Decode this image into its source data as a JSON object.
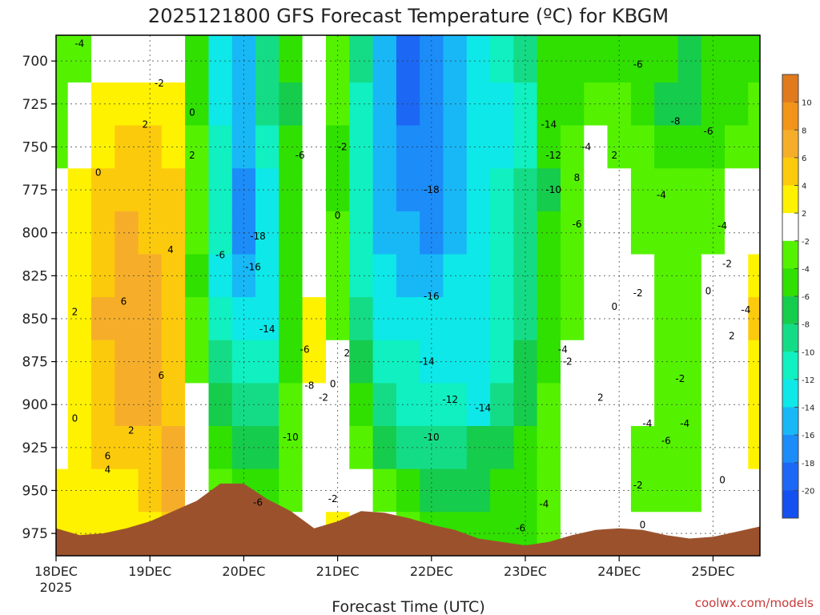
{
  "chart_data": {
    "type": "heatmap",
    "title": "2025121800 GFS Forecast Temperature (ºC) for KBGM",
    "xlabel": "Forecast Time (UTC)",
    "ylabel": "",
    "x_ticks": [
      "18DEC",
      "19DEC",
      "20DEC",
      "21DEC",
      "22DEC",
      "23DEC",
      "24DEC",
      "25DEC"
    ],
    "x_year": "2025",
    "y_ticks": [
      "700",
      "725",
      "750",
      "775",
      "800",
      "825",
      "850",
      "875",
      "900",
      "925",
      "950",
      "975"
    ],
    "ylim": [
      988,
      685
    ],
    "xlim_days": [
      0,
      7.5
    ],
    "grid": true,
    "colorbar": {
      "labels": [
        "10",
        "8",
        "6",
        "4",
        "2",
        "-2",
        "-4",
        "-6",
        "-8",
        "-10",
        "-12",
        "-14",
        "-16",
        "-18",
        "-20"
      ],
      "colors": [
        "#e07a1c",
        "#f19418",
        "#f6ae2a",
        "#fcca0c",
        "#fff200",
        "#ffffff",
        "#54f200",
        "#30e000",
        "#16cc4c",
        "#14dc86",
        "#10f0c0",
        "#0ee8e8",
        "#18b8f6",
        "#1c8cf8",
        "#1c68f4",
        "#1450f0"
      ]
    },
    "columns_x": [
      0,
      0.25,
      0.5,
      0.75,
      1,
      1.25,
      1.5,
      1.75,
      2,
      2.25,
      2.5,
      2.75,
      3,
      3.25,
      3.5,
      3.75,
      4,
      4.25,
      4.5,
      4.75,
      5,
      5.25,
      5.5,
      5.75,
      6,
      6.25,
      6.5,
      6.75,
      7,
      7.25,
      7.5
    ],
    "levels_hpa": [
      700,
      725,
      750,
      775,
      800,
      825,
      850,
      875,
      900,
      925,
      950,
      975
    ],
    "temperature_c": [
      [
        -4,
        -4,
        0,
        0,
        -2,
        0,
        -6,
        -14,
        -16,
        -10,
        -6,
        -2,
        -4,
        -10,
        -16,
        -20,
        -18,
        -16,
        -14,
        -12,
        -10,
        -6,
        -6,
        -6,
        -6,
        -6,
        -6,
        -8,
        -6,
        -6,
        -6
      ],
      [
        -4,
        0,
        2,
        2,
        2,
        2,
        -6,
        -14,
        -16,
        -10,
        -8,
        -2,
        -4,
        -12,
        -16,
        -20,
        -18,
        -16,
        -14,
        -14,
        -12,
        -6,
        -6,
        -4,
        -4,
        -6,
        -8,
        -8,
        -6,
        -6,
        -4
      ],
      [
        -4,
        0,
        2,
        4,
        4,
        2,
        -4,
        -12,
        -16,
        -12,
        -6,
        0,
        -6,
        -12,
        -16,
        -18,
        -18,
        -16,
        -14,
        -14,
        -12,
        -6,
        -4,
        -2,
        -4,
        -4,
        -6,
        -6,
        -6,
        -4,
        -4
      ],
      [
        -2,
        2,
        4,
        4,
        4,
        4,
        -4,
        -12,
        -18,
        -14,
        -6,
        0,
        -6,
        -12,
        -16,
        -18,
        -18,
        -16,
        -14,
        -12,
        -10,
        -8,
        -4,
        0,
        -2,
        -4,
        -4,
        -4,
        -4,
        -2,
        -2
      ],
      [
        -2,
        2,
        4,
        6,
        4,
        4,
        -4,
        -12,
        -18,
        -14,
        -6,
        0,
        -4,
        -12,
        -16,
        -16,
        -18,
        -16,
        -14,
        -12,
        -10,
        -6,
        -4,
        0,
        -2,
        -4,
        -4,
        -4,
        -4,
        -2,
        -2
      ],
      [
        0,
        2,
        4,
        6,
        6,
        4,
        -6,
        -14,
        -16,
        -14,
        -6,
        0,
        -4,
        -12,
        -14,
        -16,
        -16,
        -14,
        -14,
        -12,
        -10,
        -6,
        -4,
        0,
        -2,
        -2,
        -4,
        -4,
        -2,
        -2,
        2
      ],
      [
        0,
        2,
        6,
        6,
        6,
        4,
        -4,
        -12,
        -14,
        -14,
        -6,
        2,
        -4,
        -10,
        -14,
        -14,
        -14,
        -14,
        -14,
        -12,
        -10,
        -6,
        -4,
        0,
        0,
        -2,
        -4,
        -4,
        -2,
        0,
        4
      ],
      [
        0,
        2,
        4,
        6,
        6,
        4,
        -4,
        -10,
        -12,
        -12,
        -6,
        2,
        -2,
        -8,
        -12,
        -12,
        -14,
        -14,
        -14,
        -12,
        -8,
        -6,
        -2,
        0,
        0,
        -2,
        -4,
        -4,
        -2,
        0,
        2
      ],
      [
        0,
        2,
        4,
        6,
        6,
        4,
        -2,
        -8,
        -10,
        -10,
        -4,
        0,
        -2,
        -6,
        -10,
        -12,
        -12,
        -12,
        -14,
        -10,
        -8,
        -4,
        -2,
        0,
        -2,
        -2,
        -4,
        -4,
        -2,
        0,
        2
      ],
      [
        0,
        2,
        4,
        4,
        4,
        6,
        0,
        -6,
        -8,
        -8,
        -4,
        0,
        0,
        -4,
        -8,
        -10,
        -10,
        -10,
        -8,
        -8,
        -6,
        -4,
        -2,
        0,
        -2,
        -4,
        -4,
        -4,
        -2,
        0,
        2
      ],
      [
        2,
        2,
        2,
        2,
        4,
        6,
        0,
        -4,
        -6,
        -6,
        -4,
        -2,
        0,
        -2,
        -4,
        -6,
        -8,
        -8,
        -8,
        -6,
        -6,
        -4,
        -2,
        0,
        -2,
        -4,
        -4,
        -4,
        -2,
        0,
        0
      ],
      [
        2,
        2,
        2,
        2,
        2,
        4,
        2,
        -2,
        -4,
        -4,
        -2,
        0,
        2,
        0,
        -2,
        -4,
        -6,
        -6,
        -6,
        -6,
        -6,
        -4,
        -2,
        0,
        0,
        -2,
        -2,
        -2,
        -2,
        -2,
        0
      ]
    ],
    "surface_pressure_hpa": [
      972,
      976,
      975,
      972,
      968,
      962,
      956,
      946,
      946,
      955,
      962,
      972,
      968,
      962,
      963,
      966,
      970,
      973,
      978,
      980,
      982,
      980,
      976,
      973,
      972,
      973,
      976,
      978,
      977,
      974,
      971
    ],
    "contour_labels": [
      {
        "t": "-4",
        "x": 0.25,
        "p": 690
      },
      {
        "t": "-2",
        "x": 1.1,
        "p": 713
      },
      {
        "t": "0",
        "x": 1.45,
        "p": 730
      },
      {
        "t": "2",
        "x": 0.95,
        "p": 737
      },
      {
        "t": "2",
        "x": 1.45,
        "p": 755
      },
      {
        "t": "0",
        "x": 0.45,
        "p": 765
      },
      {
        "t": "-6",
        "x": 2.6,
        "p": 755
      },
      {
        "t": "-2",
        "x": 3.05,
        "p": 750
      },
      {
        "t": "-18",
        "x": 2.15,
        "p": 802
      },
      {
        "t": "-16",
        "x": 2.1,
        "p": 820
      },
      {
        "t": "-6",
        "x": 1.75,
        "p": 813
      },
      {
        "t": "4",
        "x": 1.22,
        "p": 810
      },
      {
        "t": "6",
        "x": 0.72,
        "p": 840
      },
      {
        "t": "2",
        "x": 0.2,
        "p": 846
      },
      {
        "t": "0",
        "x": 3.0,
        "p": 790
      },
      {
        "t": "-14",
        "x": 2.25,
        "p": 856
      },
      {
        "t": "-6",
        "x": 2.65,
        "p": 868
      },
      {
        "t": "2",
        "x": 3.1,
        "p": 870
      },
      {
        "t": "6",
        "x": 1.12,
        "p": 883
      },
      {
        "t": "-8",
        "x": 2.7,
        "p": 889
      },
      {
        "t": "-2",
        "x": 2.85,
        "p": 896
      },
      {
        "t": "0",
        "x": 2.95,
        "p": 888
      },
      {
        "t": "2",
        "x": 0.8,
        "p": 915
      },
      {
        "t": "0",
        "x": 0.2,
        "p": 908
      },
      {
        "t": "6",
        "x": 0.55,
        "p": 930
      },
      {
        "t": "4",
        "x": 0.55,
        "p": 938
      },
      {
        "t": "-10",
        "x": 2.5,
        "p": 919
      },
      {
        "t": "-6",
        "x": 2.15,
        "p": 957
      },
      {
        "t": "-2",
        "x": 2.95,
        "p": 955
      },
      {
        "t": "-18",
        "x": 4.0,
        "p": 775
      },
      {
        "t": "-16",
        "x": 4.0,
        "p": 837
      },
      {
        "t": "-14",
        "x": 3.95,
        "p": 875
      },
      {
        "t": "-12",
        "x": 4.2,
        "p": 897
      },
      {
        "t": "-14",
        "x": 4.55,
        "p": 902
      },
      {
        "t": "-10",
        "x": 4.0,
        "p": 919
      },
      {
        "t": "-6",
        "x": 4.95,
        "p": 972
      },
      {
        "t": "-4",
        "x": 5.2,
        "p": 958
      },
      {
        "t": "-14",
        "x": 5.25,
        "p": 737
      },
      {
        "t": "-12",
        "x": 5.3,
        "p": 755
      },
      {
        "t": "-10",
        "x": 5.3,
        "p": 775
      },
      {
        "t": "-4",
        "x": 5.65,
        "p": 750
      },
      {
        "t": "2",
        "x": 5.95,
        "p": 755
      },
      {
        "t": "8",
        "x": 5.55,
        "p": 768
      },
      {
        "t": "-6",
        "x": 5.55,
        "p": 795
      },
      {
        "t": "-4",
        "x": 5.4,
        "p": 868
      },
      {
        "t": "-2",
        "x": 5.45,
        "p": 875
      },
      {
        "t": "-6",
        "x": 6.2,
        "p": 702
      },
      {
        "t": "-8",
        "x": 6.6,
        "p": 735
      },
      {
        "t": "-6",
        "x": 6.95,
        "p": 741
      },
      {
        "t": "-4",
        "x": 6.45,
        "p": 778
      },
      {
        "t": "-4",
        "x": 7.1,
        "p": 796
      },
      {
        "t": "-2",
        "x": 7.15,
        "p": 818
      },
      {
        "t": "0",
        "x": 6.95,
        "p": 834
      },
      {
        "t": "0",
        "x": 5.95,
        "p": 843
      },
      {
        "t": "-2",
        "x": 6.2,
        "p": 835
      },
      {
        "t": "-4",
        "x": 7.35,
        "p": 845
      },
      {
        "t": "2",
        "x": 7.2,
        "p": 860
      },
      {
        "t": "2",
        "x": 5.8,
        "p": 896
      },
      {
        "t": "-2",
        "x": 6.65,
        "p": 885
      },
      {
        "t": "-4",
        "x": 6.3,
        "p": 911
      },
      {
        "t": "-6",
        "x": 6.5,
        "p": 921
      },
      {
        "t": "-4",
        "x": 6.7,
        "p": 911
      },
      {
        "t": "-2",
        "x": 6.2,
        "p": 947
      },
      {
        "t": "0",
        "x": 7.1,
        "p": 944
      },
      {
        "t": "0",
        "x": 6.25,
        "p": 970
      }
    ]
  },
  "credit": "coolwx.com/models"
}
